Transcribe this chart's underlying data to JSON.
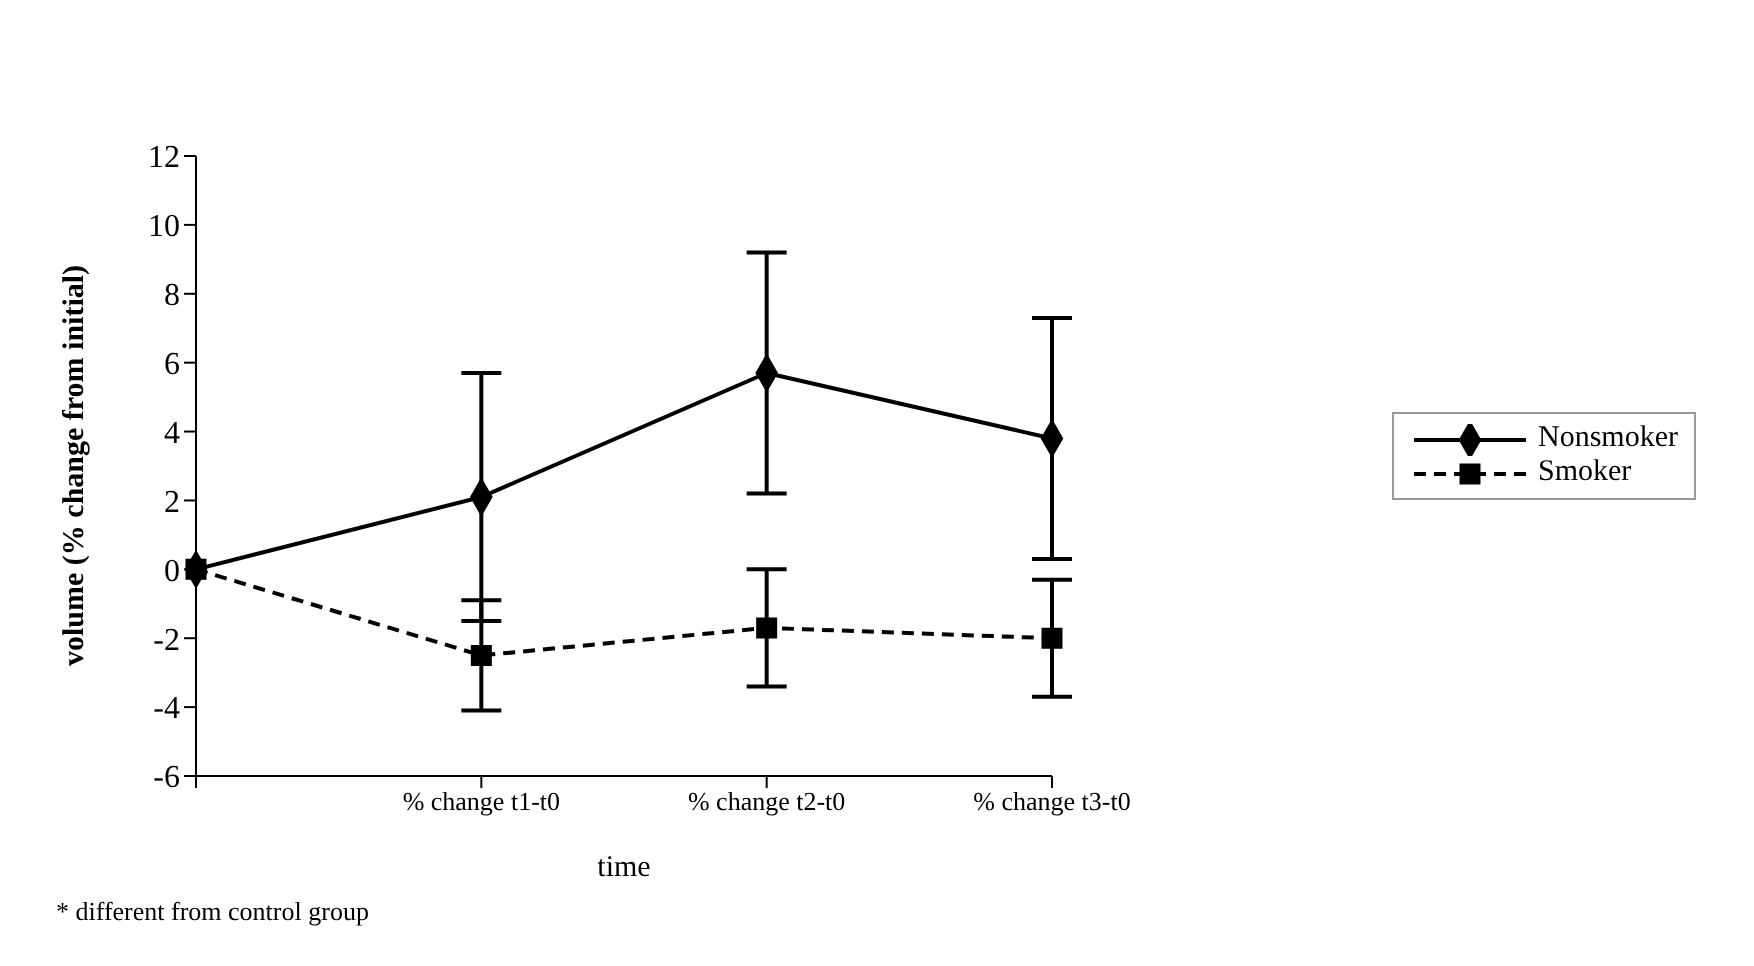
{
  "chart_data": {
    "type": "line",
    "xlabel": "time",
    "ylabel": "volume (% change from initial)",
    "categories": [
      null,
      "% change t1-t0",
      "% change t2-t0",
      "% change t3-t0"
    ],
    "series": [
      {
        "name": "Nonsmoker",
        "color": "#000000",
        "values": [
          0,
          2.1,
          5.7,
          3.8
        ],
        "errors": [
          null,
          3.6,
          3.5,
          3.5
        ],
        "marker": "diamond",
        "line_style": "solid"
      },
      {
        "name": "Smoker",
        "color": "#000000",
        "values": [
          0,
          -2.5,
          -1.7,
          -2.0
        ],
        "errors": [
          null,
          1.6,
          1.7,
          1.7
        ],
        "marker": "square",
        "line_style": "dashed"
      }
    ],
    "ylim": [
      -6,
      12
    ],
    "yticks": [
      -6,
      -4,
      -2,
      0,
      2,
      4,
      6,
      8,
      10,
      12
    ],
    "grid": false,
    "legend": "right",
    "annotations": [
      "* different from control group"
    ]
  }
}
